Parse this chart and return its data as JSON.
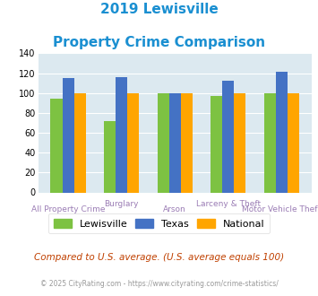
{
  "title_line1": "2019 Lewisville",
  "title_line2": "Property Crime Comparison",
  "title_color": "#1a8fd1",
  "groups": [
    {
      "label": "All Property Crime",
      "lewisville": 94,
      "texas": 115,
      "national": 100
    },
    {
      "label": "Burglary",
      "lewisville": 72,
      "texas": 116,
      "national": 100
    },
    {
      "label": "Arson",
      "lewisville": 100,
      "texas": 100,
      "national": 100
    },
    {
      "label": "Larceny & Theft",
      "lewisville": 97,
      "texas": 112,
      "national": 100
    },
    {
      "label": "Motor Vehicle Theft",
      "lewisville": 100,
      "texas": 121,
      "national": 100
    }
  ],
  "color_lewisville": "#7dc242",
  "color_texas": "#4472c4",
  "color_national": "#ffa500",
  "ylim": [
    0,
    140
  ],
  "yticks": [
    0,
    20,
    40,
    60,
    80,
    100,
    120,
    140
  ],
  "plot_bg": "#dce9f0",
  "label_color": "#9b7db5",
  "legend_labels": [
    "Lewisville",
    "Texas",
    "National"
  ],
  "top_xlabels": {
    "1": "Burglary",
    "3": "Larceny & Theft"
  },
  "bottom_xlabels": {
    "0": "All Property Crime",
    "2": "Arson",
    "4": "Motor Vehicle Theft"
  },
  "footnote1": "Compared to U.S. average. (U.S. average equals 100)",
  "footnote2": "© 2025 CityRating.com - https://www.cityrating.com/crime-statistics/",
  "footnote1_color": "#c04000",
  "footnote2_color": "#999999"
}
